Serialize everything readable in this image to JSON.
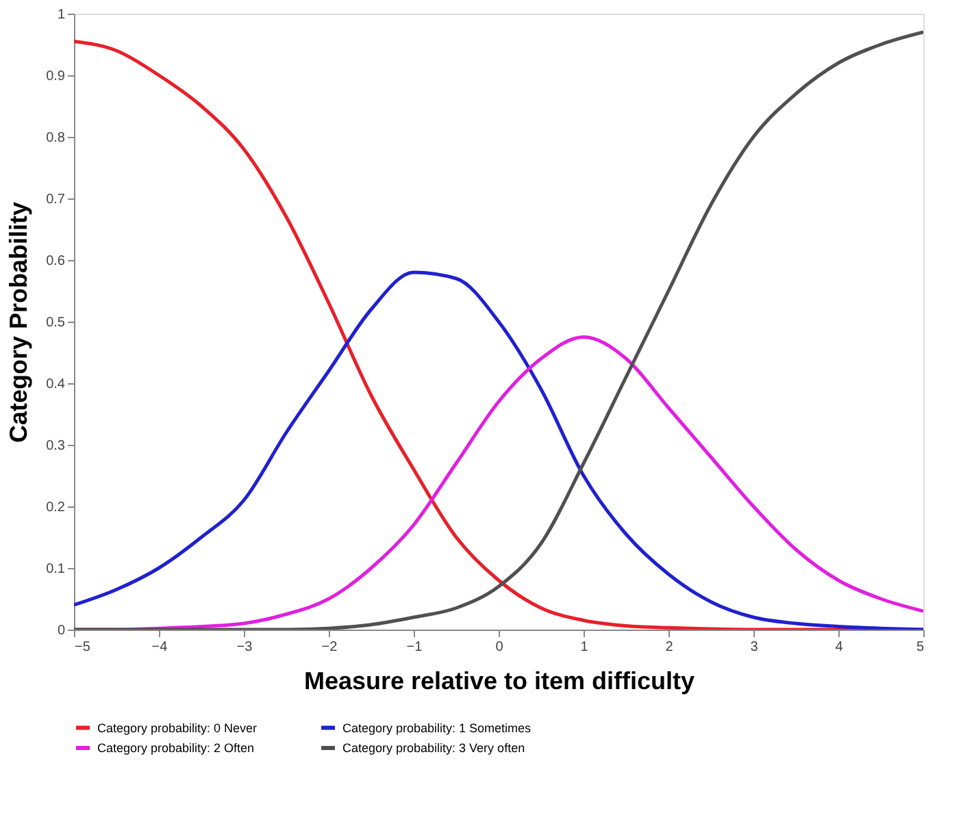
{
  "chart_data": {
    "type": "line",
    "xlabel": "Measure relative to item difficulty",
    "ylabel": "Category Probability",
    "x": [
      -5,
      -4.5,
      -4,
      -3.5,
      -3,
      -2.5,
      -2,
      -1.5,
      -1,
      -0.5,
      0,
      0.5,
      1,
      1.5,
      2,
      2.5,
      3,
      3.5,
      4,
      4.5,
      5
    ],
    "series": [
      {
        "name": "Category probability: 0 Never",
        "color": "#e8202a",
        "values": [
          0.955,
          0.94,
          0.9,
          0.85,
          0.78,
          0.67,
          0.53,
          0.38,
          0.26,
          0.15,
          0.08,
          0.035,
          0.015,
          0.006,
          0.003,
          0.001,
          0,
          0,
          0,
          0,
          0
        ]
      },
      {
        "name": "Category probability: 1 Sometimes",
        "color": "#2020d0",
        "values": [
          0.04,
          0.065,
          0.1,
          0.15,
          0.21,
          0.32,
          0.42,
          0.52,
          0.58,
          0.57,
          0.5,
          0.39,
          0.25,
          0.155,
          0.09,
          0.045,
          0.02,
          0.01,
          0.005,
          0.002,
          0
        ]
      },
      {
        "name": "Category probability: 2 Often",
        "color": "#e020e0",
        "values": [
          0,
          0,
          0.002,
          0.005,
          0.01,
          0.025,
          0.05,
          0.1,
          0.17,
          0.27,
          0.37,
          0.44,
          0.475,
          0.44,
          0.36,
          0.28,
          0.2,
          0.13,
          0.08,
          0.05,
          0.03
        ]
      },
      {
        "name": "Category probability: 3 Very often",
        "color": "#505050",
        "values": [
          0,
          0,
          0,
          0,
          0,
          0,
          0.002,
          0.008,
          0.02,
          0.035,
          0.07,
          0.14,
          0.27,
          0.41,
          0.55,
          0.69,
          0.8,
          0.87,
          0.92,
          0.95,
          0.97
        ]
      }
    ],
    "xlim": [
      -5,
      5
    ],
    "xticks": [
      -5,
      -4,
      -3,
      -2,
      -1,
      0,
      1,
      2,
      3,
      4,
      5
    ],
    "ylim": [
      0,
      1
    ],
    "yticks": [
      0,
      0.1,
      0.2,
      0.3,
      0.4,
      0.5,
      0.6,
      0.7,
      0.8,
      0.9,
      1
    ],
    "grid": false,
    "legend": "bottom",
    "marker": "none",
    "line_style": "solid"
  }
}
